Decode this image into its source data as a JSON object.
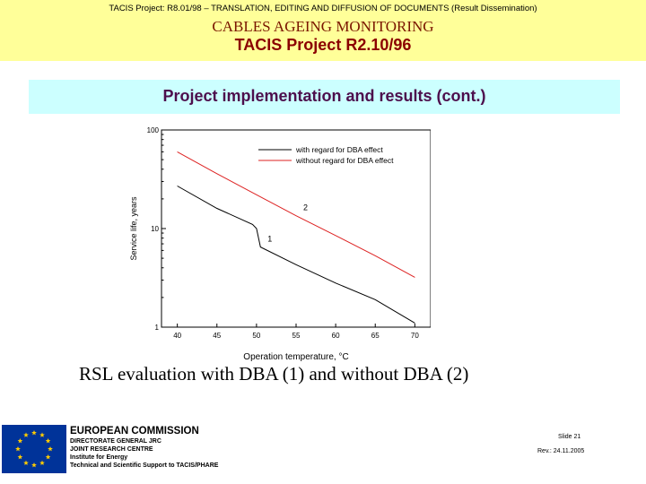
{
  "header": {
    "top_line": "TACIS Project: R8.01/98 – TRANSLATION, EDITING AND DIFFUSION OF DOCUMENTS (Result Dissemination)",
    "title": "CABLES AGEING MONITORING",
    "subtitle": "TACIS Project R2.10/96",
    "background_color": "#ffff99"
  },
  "slide_title": "Project implementation and results (cont.)",
  "chart_data": {
    "type": "line",
    "xlabel": "Operation temperature, °C",
    "ylabel": "Service life, years",
    "yscale": "log",
    "xlim": [
      38,
      72
    ],
    "ylim": [
      1,
      100
    ],
    "x_ticks": [
      40,
      45,
      50,
      55,
      60,
      65,
      70
    ],
    "y_ticks": [
      1,
      10,
      100
    ],
    "legend_position": "top-right",
    "series": [
      {
        "name": "with regard for DBA effect",
        "color": "#000000",
        "label": "1",
        "x": [
          40,
          45,
          49.5,
          50,
          50.5,
          55,
          60,
          65,
          70
        ],
        "y": [
          27,
          16,
          11,
          10,
          6.5,
          4.3,
          2.8,
          1.9,
          1.1
        ]
      },
      {
        "name": "without regard for DBA effect",
        "color": "#dd2222",
        "label": "2",
        "x": [
          40,
          45,
          50,
          55,
          60,
          65,
          70
        ],
        "y": [
          60,
          36,
          22,
          13.5,
          8.5,
          5.3,
          3.2
        ]
      }
    ]
  },
  "caption": "RSL evaluation with DBA (1) and without DBA (2)",
  "footer": {
    "org": "EUROPEAN COMMISSION",
    "line1": "DIRECTORATE GENERAL JRC",
    "line2": "JOINT RESEARCH CENTRE",
    "line3": "Institute for Energy",
    "line4": "Technical and Scientific Support to TACIS/PHARE",
    "slide": "Slide 21",
    "revision": "Rev.: 24.11.2005"
  }
}
